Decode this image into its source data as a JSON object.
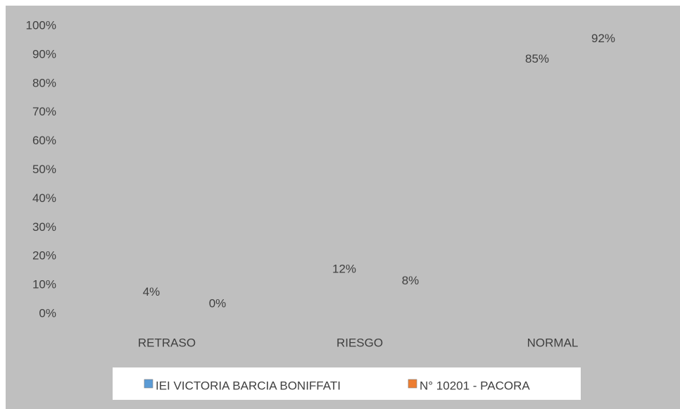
{
  "chart_data": {
    "type": "bar",
    "categories": [
      "RETRASO",
      "RIESGO",
      "NORMAL"
    ],
    "series": [
      {
        "name": "IEI VICTORIA BARCIA BONIFFATI",
        "color": "#5b9bd5",
        "values": [
          4,
          12,
          85
        ],
        "value_labels": [
          "4%",
          "12%",
          "85%"
        ]
      },
      {
        "name": "N° 10201 - PACORA",
        "color": "#ed7d31",
        "values": [
          0,
          8,
          92
        ],
        "value_labels": [
          "0%",
          "8%",
          "92%"
        ]
      }
    ],
    "ylim": [
      0,
      100
    ],
    "yticks": [
      {
        "value": 0,
        "label": "0%"
      },
      {
        "value": 10,
        "label": "10%"
      },
      {
        "value": 20,
        "label": "20%"
      },
      {
        "value": 30,
        "label": "30%"
      },
      {
        "value": 40,
        "label": "40%"
      },
      {
        "value": 50,
        "label": "50%"
      },
      {
        "value": 60,
        "label": "60%"
      },
      {
        "value": 70,
        "label": "70%"
      },
      {
        "value": 80,
        "label": "80%"
      },
      {
        "value": 90,
        "label": "90%"
      },
      {
        "value": 100,
        "label": "100%"
      }
    ],
    "legend": "bottom"
  }
}
